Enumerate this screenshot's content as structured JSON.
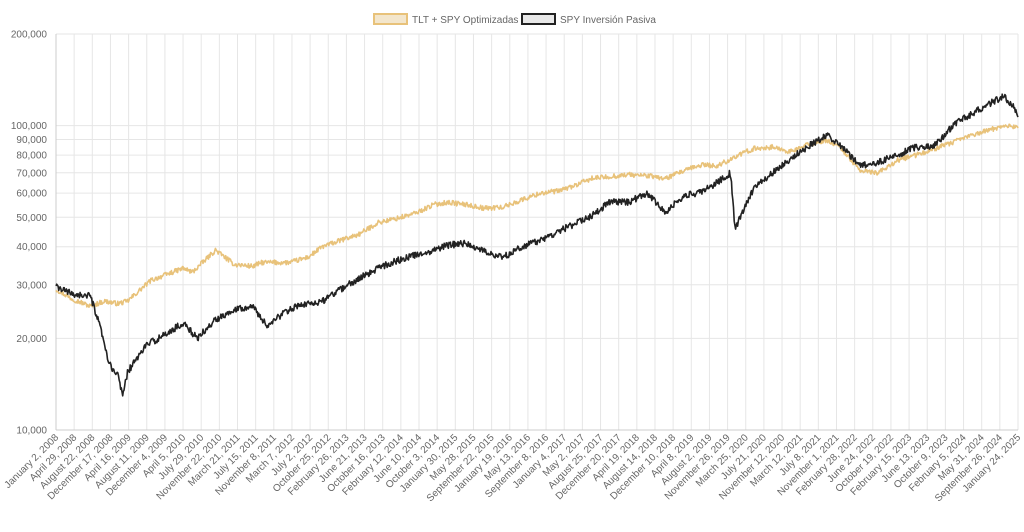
{
  "chart_data": {
    "type": "line",
    "title": "",
    "xlabel": "",
    "ylabel": "",
    "y_scale": "log",
    "ylim": [
      10000,
      200000
    ],
    "grid": true,
    "legend_position": "top-center",
    "y_ticks": [
      {
        "value": 10000,
        "label": "10,000"
      },
      {
        "value": 20000,
        "label": "20,000"
      },
      {
        "value": 30000,
        "label": "30,000"
      },
      {
        "value": 40000,
        "label": "40,000"
      },
      {
        "value": 50000,
        "label": "50,000"
      },
      {
        "value": 60000,
        "label": "60,000"
      },
      {
        "value": 70000,
        "label": "70,000"
      },
      {
        "value": 80000,
        "label": "80,000"
      },
      {
        "value": 90000,
        "label": "90,000"
      },
      {
        "value": 100000,
        "label": "100,000"
      },
      {
        "value": 200000,
        "label": "200,000"
      }
    ],
    "x_tick_labels": [
      "January 2, 2008",
      "April 29, 2008",
      "August 22, 2008",
      "December 17, 2008",
      "April 16, 2009",
      "August 11, 2009",
      "December 4, 2009",
      "April 5, 2010",
      "July 29, 2010",
      "November 22, 2010",
      "March 21, 2011",
      "July 15, 2011",
      "November 8, 2011",
      "March 7, 2012",
      "July 2, 2012",
      "October 25, 2012",
      "February 26, 2013",
      "June 21, 2013",
      "October 16, 2013",
      "February 12, 2014",
      "June 10, 2014",
      "October 3, 2014",
      "January 30, 2015",
      "May 28, 2015",
      "September 22, 2015",
      "January 19, 2016",
      "May 13, 2016",
      "September 8, 2016",
      "January 4, 2017",
      "May 2, 2017",
      "August 25, 2017",
      "December 20, 2017",
      "April 19, 2018",
      "August 14, 2018",
      "December 10, 2018",
      "April 8, 2019",
      "August 2, 2019",
      "November 26, 2019",
      "March 25, 2020",
      "July 21, 2020",
      "November 12, 2020",
      "March 12, 2021",
      "July 8, 2021",
      "November 1, 2021",
      "February 28, 2022",
      "June 24, 2022",
      "October 19, 2022",
      "February 15, 2023",
      "June 13, 2023",
      "October 9, 2023",
      "February 5, 2024",
      "May 31, 2024",
      "September 26, 2024",
      "January 24, 2025"
    ],
    "x_range": [
      "January 2, 2008",
      "April 2025"
    ],
    "series": [
      {
        "name": "TLT + SPY Optimizadas",
        "color": "#e8c27a",
        "points": [
          [
            "January 2, 2008",
            29000
          ],
          [
            "April 2008",
            27000
          ],
          [
            "August 2008",
            25500
          ],
          [
            "November 2008",
            26500
          ],
          [
            "February 2009",
            26000
          ],
          [
            "April 2009",
            26500
          ],
          [
            "September 2009",
            31000
          ],
          [
            "April 2010",
            34000
          ],
          [
            "June 2010",
            33000
          ],
          [
            "November 2010",
            39000
          ],
          [
            "March 2011",
            35000
          ],
          [
            "July 2011",
            34500
          ],
          [
            "September 2011",
            35500
          ],
          [
            "March 2012",
            35500
          ],
          [
            "July 2012",
            37000
          ],
          [
            "October 2012",
            40000
          ],
          [
            "February 2013",
            42000
          ],
          [
            "June 2013",
            44000
          ],
          [
            "October 2013",
            48000
          ],
          [
            "February 2014",
            49500
          ],
          [
            "June 2014",
            51500
          ],
          [
            "October 2014",
            55000
          ],
          [
            "January 2015",
            56000
          ],
          [
            "May 2015",
            55000
          ],
          [
            "September 2015",
            53500
          ],
          [
            "January 2016",
            54000
          ],
          [
            "May 2016",
            57000
          ],
          [
            "September 2016",
            60000
          ],
          [
            "January 2017",
            61000
          ],
          [
            "May 2017",
            64000
          ],
          [
            "August 2017",
            67000
          ],
          [
            "December 2017",
            68000
          ],
          [
            "April 2018",
            69000
          ],
          [
            "August 2018",
            68500
          ],
          [
            "December 2018",
            67000
          ],
          [
            "April 2019",
            71000
          ],
          [
            "August 2019",
            74500
          ],
          [
            "November 2019",
            73500
          ],
          [
            "March 2020",
            79000
          ],
          [
            "July 2020",
            84000
          ],
          [
            "November 2020",
            85000
          ],
          [
            "March 2021",
            82000
          ],
          [
            "July 2021",
            87000
          ],
          [
            "November 2021",
            89500
          ],
          [
            "February 2022",
            84000
          ],
          [
            "June 2022",
            71000
          ],
          [
            "October 2022",
            70000
          ],
          [
            "February 2023",
            77000
          ],
          [
            "June 2023",
            80000
          ],
          [
            "October 2023",
            84000
          ],
          [
            "February 2024",
            88000
          ],
          [
            "May 2024",
            92000
          ],
          [
            "September 2024",
            96000
          ],
          [
            "January 2025",
            100000
          ],
          [
            "April 2025",
            99000
          ]
        ]
      },
      {
        "name": "SPY Inversión Pasiva",
        "color": "#222222",
        "points": [
          [
            "January 2, 2008",
            29500
          ],
          [
            "April 2008",
            28000
          ],
          [
            "August 2008",
            27500
          ],
          [
            "October 2008",
            22000
          ],
          [
            "December 2008",
            16500
          ],
          [
            "February 2009",
            15000
          ],
          [
            "March 2009",
            13000
          ],
          [
            "April 2009",
            15500
          ],
          [
            "August 2009",
            19000
          ],
          [
            "December 2009",
            20500
          ],
          [
            "April 2010",
            22500
          ],
          [
            "July 2010",
            20000
          ],
          [
            "November 2010",
            23000
          ],
          [
            "March 2011",
            25000
          ],
          [
            "July 2011",
            25500
          ],
          [
            "October 2011",
            22000
          ],
          [
            "March 2012",
            25000
          ],
          [
            "July 2012",
            26000
          ],
          [
            "October 2012",
            26500
          ],
          [
            "February 2013",
            29000
          ],
          [
            "June 2013",
            31500
          ],
          [
            "October 2013",
            34000
          ],
          [
            "February 2014",
            36000
          ],
          [
            "June 2014",
            37500
          ],
          [
            "October 2014",
            39000
          ],
          [
            "January 2015",
            40500
          ],
          [
            "May 2015",
            41000
          ],
          [
            "September 2015",
            38500
          ],
          [
            "January 2016",
            37000
          ],
          [
            "May 2016",
            40000
          ],
          [
            "September 2016",
            42000
          ],
          [
            "January 2017",
            45000
          ],
          [
            "May 2017",
            48000
          ],
          [
            "August 2017",
            50500
          ],
          [
            "December 2017",
            56000
          ],
          [
            "April 2018",
            56000
          ],
          [
            "August 2018",
            60000
          ],
          [
            "December 2018",
            52000
          ],
          [
            "April 2019",
            59000
          ],
          [
            "August 2019",
            60500
          ],
          [
            "November 2019",
            65000
          ],
          [
            "February 2020",
            70000
          ],
          [
            "March 2020",
            46000
          ],
          [
            "July 2020",
            62000
          ],
          [
            "November 2020",
            70000
          ],
          [
            "March 2021",
            78000
          ],
          [
            "July 2021",
            86000
          ],
          [
            "November 2021",
            93000
          ],
          [
            "February 2022",
            85000
          ],
          [
            "June 2022",
            74000
          ],
          [
            "October 2022",
            76000
          ],
          [
            "February 2023",
            80000
          ],
          [
            "June 2023",
            85000
          ],
          [
            "October 2023",
            86000
          ],
          [
            "February 2024",
            100000
          ],
          [
            "May 2024",
            107000
          ],
          [
            "September 2024",
            116000
          ],
          [
            "January 2025",
            125000
          ],
          [
            "March 2025",
            115000
          ],
          [
            "April 2025",
            108000
          ]
        ]
      }
    ]
  }
}
